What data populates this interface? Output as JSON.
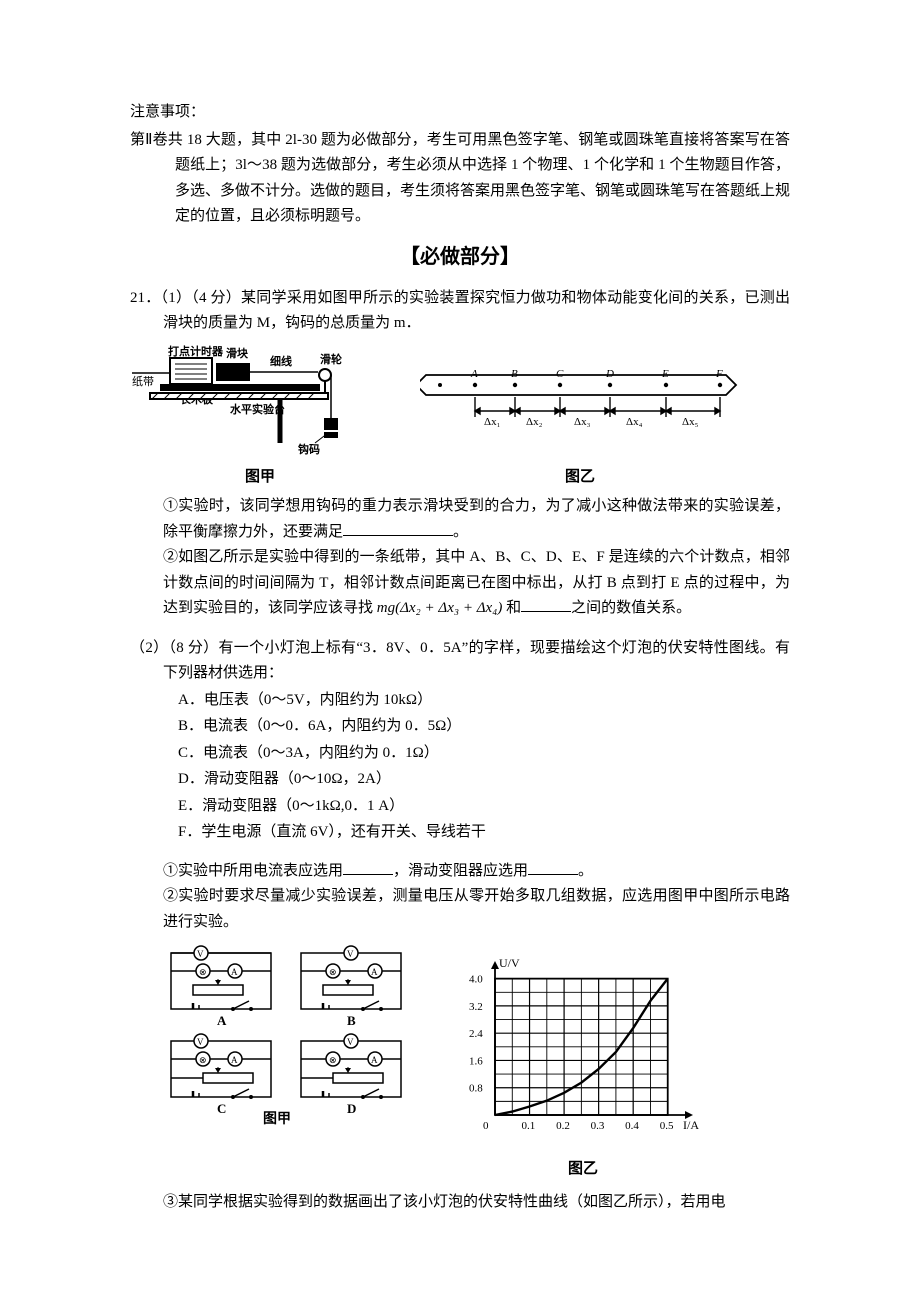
{
  "notice": {
    "label": "注意事项：",
    "body": "第Ⅱ卷共 18 大题，其中 2l-30 题为必做部分，考生可用黑色签字笔、钢笔或圆珠笔直接将答案写在答题纸上；3l～38 题为选做部分，考生必须从中选择 1 个物理、1 个化学和 1 个生物题目作答，多选、多做不计分。选做的题目，考生须将答案用黑色签字笔、钢笔或圆珠笔写在答题纸上规定的位置，且必须标明题号。"
  },
  "section_header": "【必做部分】",
  "q21": {
    "stem": "21．（1）（4 分）某同学采用如图甲所示的实验装置探究恒力做功和物体动能变化间的关系，已测出滑块的质量为 M，钩码的总质量为 m．",
    "fig_jia": {
      "labels": {
        "tape": "纸带",
        "timer": "打点计时器",
        "slider": "滑块",
        "string": "细线",
        "pulley": "滑轮",
        "board": "长木板",
        "bench": "水平实验台",
        "weight": "钩码"
      },
      "caption": "图甲"
    },
    "fig_yi1": {
      "points": [
        "A",
        "B",
        "C",
        "D",
        "E",
        "F"
      ],
      "dx": [
        "Δx₁",
        "Δx₂",
        "Δx₃",
        "Δx₄",
        "Δx₅"
      ],
      "caption": "图乙"
    },
    "p1": {
      "text_a": "①实验时，该同学想用钩码的重力表示滑块受到的合力，为了减小这种做法带来的实验误差，除平衡摩擦力外，还要满足",
      "text_b": "。"
    },
    "p2": {
      "text_a": "②如图乙所示是实验中得到的一条纸带，其中 A、B、C、D、E、F 是连续的六个计数点，相邻计数点间的时间间隔为 T，相邻计数点间距离已在图中标出，从打 B 点到打 E 点的过程中，为达到实验目的，该同学应该寻找 ",
      "formula": "mg(Δx₂ + Δx₃ + Δx₄)",
      "text_b": " 和",
      "text_c": "之间的数值关系。"
    }
  },
  "q21_2": {
    "stem": "（2）（8 分）有一个小灯泡上标有“3．8V、0．5A”的字样，现要描绘这个灯泡的伏安特性图线。有下列器材供选用：",
    "opts": {
      "A": "A．电压表（0～5V，内阻约为 10kΩ）",
      "B": "B．电流表（0～0．6A，内阻约为 0．5Ω）",
      "C": "C．电流表（0～3A，内阻约为 0．1Ω）",
      "D": "D．滑动变阻器（0～10Ω，2A）",
      "E": "E．滑动变阻器（0～1kΩ,0．1 A）",
      "F": "F．学生电源（直流 6V），还有开关、导线若干"
    },
    "p1": {
      "a": "①实验中所用电流表应选用",
      "b": "，滑动变阻器应选用",
      "c": "。"
    },
    "p2": "②实验时要求尽量减少实验误差，测量电压从零开始多取几组数据，应选用图甲中图所示电路进行实验。",
    "fig_jia2": {
      "labels": [
        "A",
        "B",
        "C",
        "D"
      ],
      "caption": "图甲"
    },
    "chart": {
      "type": "line",
      "title_y": "U/V",
      "title_x": "I/A",
      "xlim": [
        0,
        0.55
      ],
      "ylim": [
        0,
        4.4
      ],
      "xticks": [
        0.1,
        0.2,
        0.3,
        0.4,
        0.5
      ],
      "yticks": [
        0.8,
        1.6,
        2.4,
        3.2,
        4.0
      ],
      "grid_color": "#000",
      "bg": "#ffffff",
      "curve": [
        [
          0.0,
          0.0
        ],
        [
          0.05,
          0.1
        ],
        [
          0.1,
          0.25
        ],
        [
          0.15,
          0.42
        ],
        [
          0.2,
          0.65
        ],
        [
          0.25,
          0.95
        ],
        [
          0.3,
          1.35
        ],
        [
          0.35,
          1.85
        ],
        [
          0.4,
          2.55
        ],
        [
          0.45,
          3.35
        ],
        [
          0.5,
          4.0
        ]
      ],
      "caption": "图乙"
    },
    "p3": "③某同学根据实验得到的数据画出了该小灯泡的伏安特性曲线（如图乙所示），若用电"
  }
}
